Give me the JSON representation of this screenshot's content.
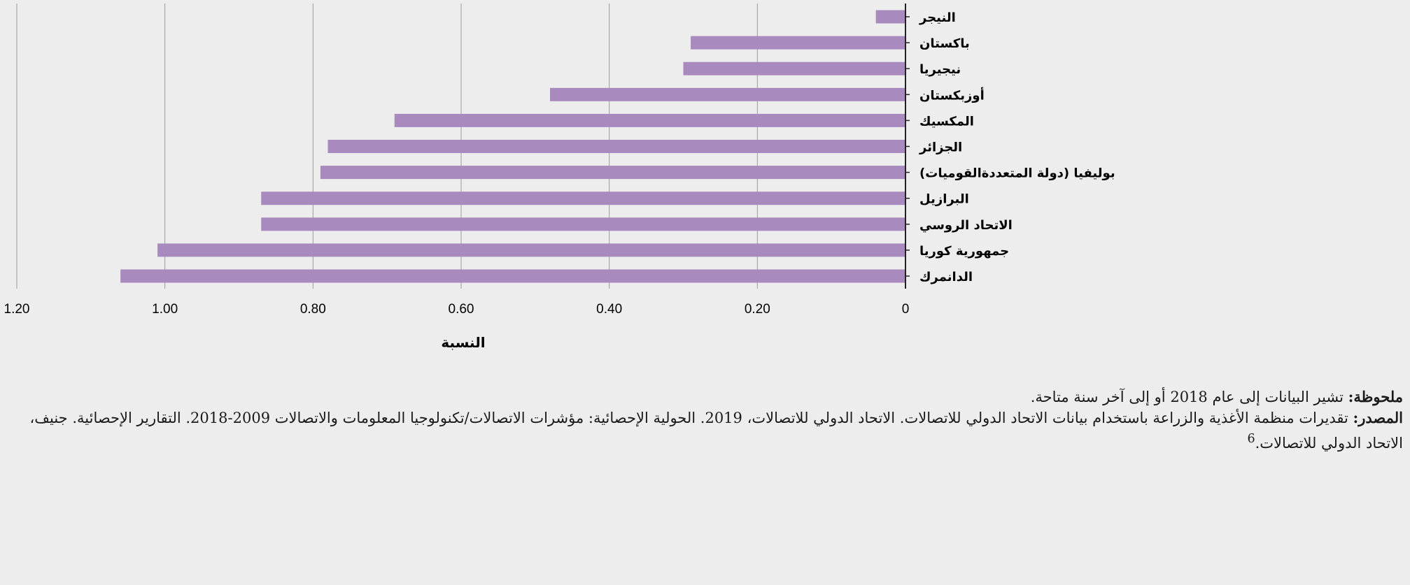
{
  "chart_data": {
    "type": "bar",
    "orientation": "horizontal",
    "categories": [
      "النيجر",
      "باكستان",
      "نيجيريا",
      "أوزبكستان",
      "المكسيك",
      "الجزائر",
      "بوليفيا (دولة المتعددةالقوميات)",
      "البرازيل",
      "الاتحاد الروسي",
      "جمهورية كوريا",
      "الدانمرك"
    ],
    "values": [
      0.04,
      0.29,
      0.3,
      0.48,
      0.69,
      0.78,
      0.79,
      0.87,
      0.87,
      1.01,
      1.06
    ],
    "xlabel": "النسبة",
    "ylabel": "",
    "xlim": [
      0,
      1.2
    ],
    "xticks": [
      "0",
      "0.20",
      "0.40",
      "0.60",
      "0.80",
      "1.00",
      "1.20"
    ],
    "xtick_values": [
      0,
      0.2,
      0.4,
      0.6,
      0.8,
      1.0,
      1.2
    ],
    "x_direction": "right-to-left",
    "grid": true,
    "bar_color": "#a98abf"
  },
  "notes": {
    "note_label": "ملحوظة:",
    "note_text": " تشير البيانات إلى عام 2018 أو إلى آخر سنة متاحة.",
    "source_label": "المصدر:",
    "source_text": " تقديرات منظمة الأغذية والزراعة باستخدام بيانات الاتحاد الدولي للاتصالات. الاتحاد الدولي للاتصالات، 2019. الحولية الإحصائية: مؤشرات الاتصالات/تكنولوجيا المعلومات والاتصالات 2009-2018. التقارير الإحصائية. جنيف، الاتحاد الدولي للاتصالات.",
    "footnote_ref": "6"
  }
}
